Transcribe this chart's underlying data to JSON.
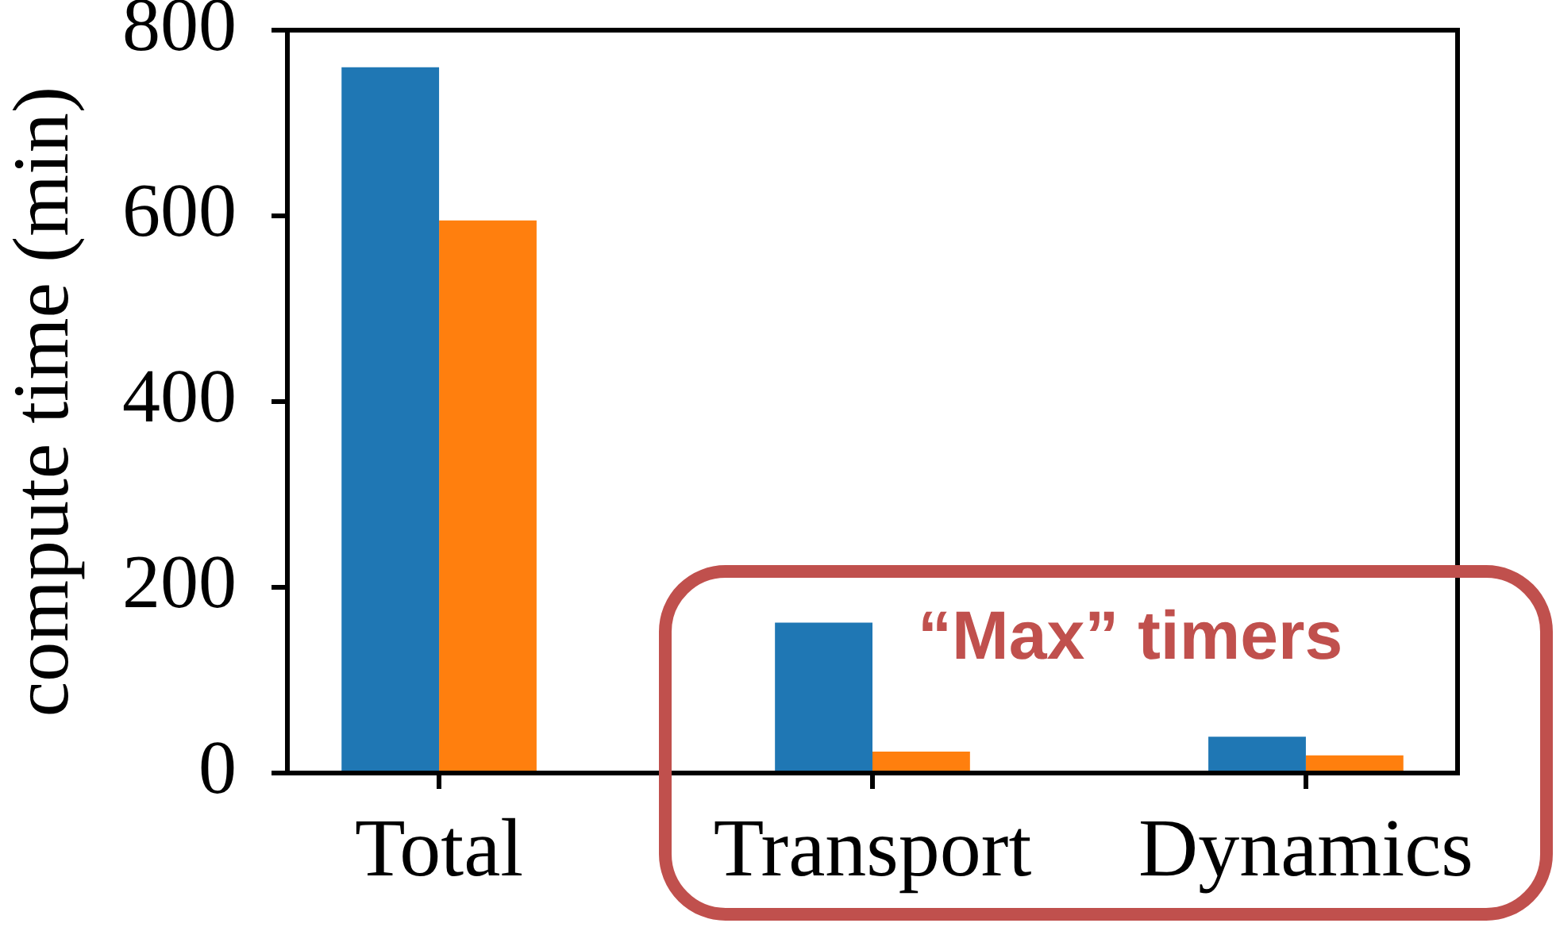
{
  "chart_data": {
    "type": "bar",
    "categories": [
      "Total",
      "Transport",
      "Dynamics"
    ],
    "series": [
      {
        "color": "#1f77b4",
        "values": [
          760,
          162,
          39
        ]
      },
      {
        "color": "#ff7f0e",
        "values": [
          595,
          23,
          19
        ]
      }
    ],
    "ylabel": "compute time (min)",
    "ylim": [
      0,
      800
    ],
    "yticks": [
      0,
      200,
      400,
      600,
      800
    ],
    "annotations": [
      "“Max” timers"
    ]
  }
}
